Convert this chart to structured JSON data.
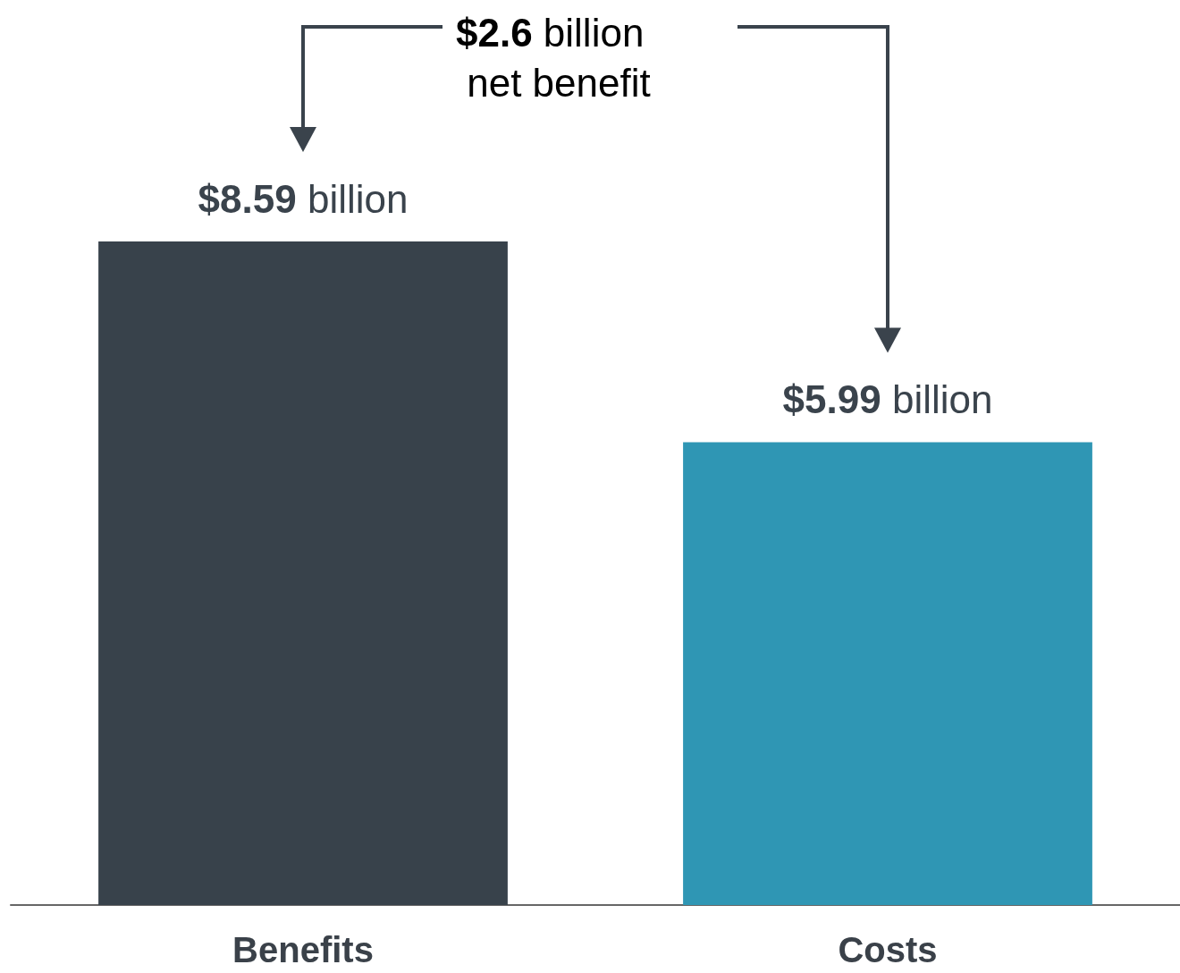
{
  "chart_data": {
    "type": "bar",
    "categories": [
      "Benefits",
      "Costs"
    ],
    "values": [
      8.59,
      5.99
    ],
    "colors": [
      "#38424b",
      "#2f96b4"
    ],
    "value_labels": [
      "$8.59 billion",
      "$5.99 billion"
    ],
    "annotations": [
      "$2.6 billion net benefit"
    ]
  }
}
